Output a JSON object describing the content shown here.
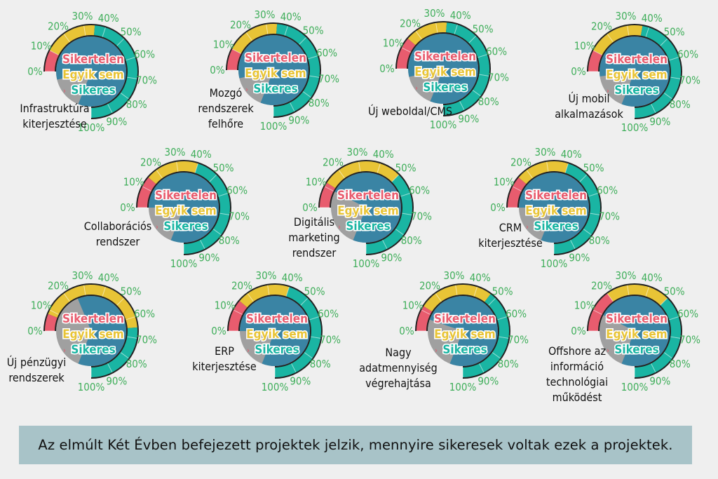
{
  "chart_data": {
    "type": "gauge",
    "scale_ticks": [
      "0%",
      "10%",
      "20%",
      "30%",
      "40%",
      "50%",
      "60%",
      "70%",
      "80%",
      "90%",
      "100%"
    ],
    "legend": [
      {
        "label": "Sikertelen",
        "color": "#e85c6e"
      },
      {
        "label": "Egyik sem",
        "color": "#e8c436"
      },
      {
        "label": "Sikeres",
        "color": "#1ab5a3"
      }
    ],
    "colors": {
      "failed": "#e85c6e",
      "neither": "#e8c436",
      "success": "#1ab5a3",
      "inner_blue": "#3a84a4",
      "inner_gray": "#a0a0a0",
      "tick_label": "#3fae5a"
    },
    "projects": [
      {
        "name": [
          "Infrastruktúra",
          "kiterjesztése"
        ],
        "failed": 10,
        "neither": 25,
        "success": 65
      },
      {
        "name": [
          "Mozgó",
          "rendszerek",
          "felhőre"
        ],
        "failed": 10,
        "neither": 25,
        "success": 65
      },
      {
        "name": [
          "Új weboldal/CMS"
        ],
        "failed": 15,
        "neither": 20,
        "success": 65
      },
      {
        "name": [
          "Új mobil",
          "alkalmazások"
        ],
        "failed": 10,
        "neither": 27,
        "success": 63
      },
      {
        "name": [
          "Collaborációs",
          "rendszer"
        ],
        "failed": 15,
        "neither": 25,
        "success": 60
      },
      {
        "name": [
          "Digitális",
          "marketing",
          "rendszer"
        ],
        "failed": 12,
        "neither": 38,
        "success": 50
      },
      {
        "name": [
          "CRM",
          "kiterjesztése"
        ],
        "failed": 15,
        "neither": 25,
        "success": 60
      },
      {
        "name": [
          "Új pénzügyi",
          "rendszerek"
        ],
        "failed": 8,
        "neither": 57,
        "success": 35
      },
      {
        "name": [
          "ERP",
          "kiterjesztése"
        ],
        "failed": 15,
        "neither": 25,
        "success": 60
      },
      {
        "name": [
          "Nagy",
          "adatmennyiség",
          "végrehajtása"
        ],
        "failed": 12,
        "neither": 35,
        "success": 53
      },
      {
        "name": [
          "Offshore az",
          "információ",
          "technológiai",
          "működést"
        ],
        "failed": 20,
        "neither": 30,
        "success": 50
      }
    ]
  },
  "footer": {
    "text": "Az elmúlt Két Évben befejezett projektek jelzik, mennyire sikeresek voltak ezek a projektek."
  }
}
